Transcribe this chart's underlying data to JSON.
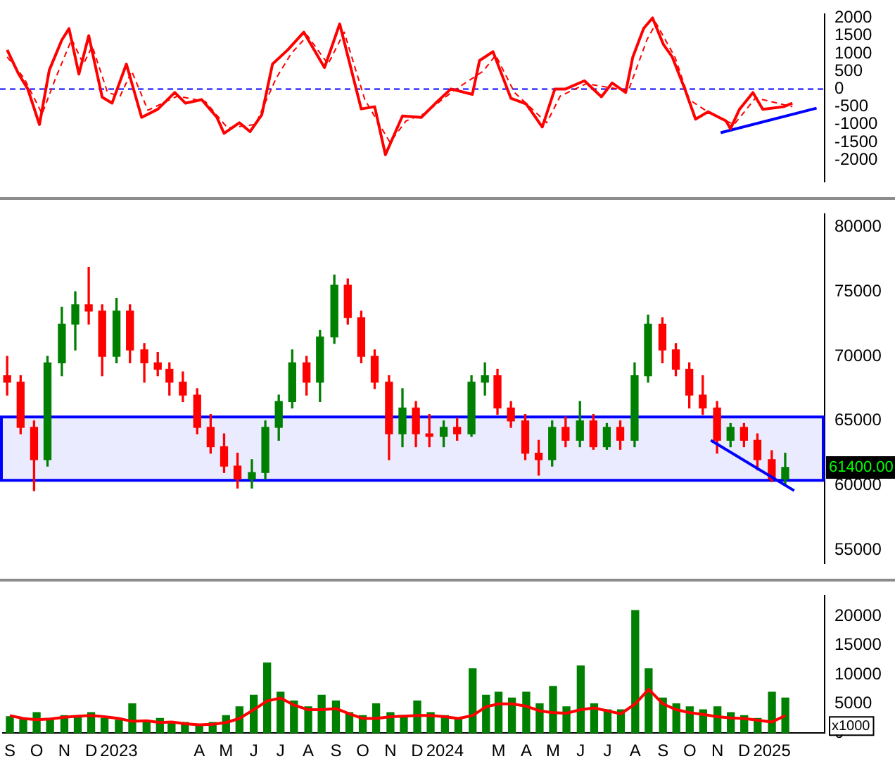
{
  "chart_data": [
    {
      "type": "line",
      "xlim": [
        "2022-08-24",
        "2025-03-01"
      ],
      "ylim": [
        -2600,
        2100
      ],
      "yticks": [
        -2000,
        -1500,
        -1000,
        -500,
        0,
        500,
        1000,
        1500,
        2000
      ],
      "tick_labels": "y",
      "grid": false,
      "legend": false,
      "ref_lines": [
        {
          "axis": "y",
          "value": 0,
          "color": "#0000ff",
          "line_style": "dashed"
        }
      ],
      "series": [
        {
          "color": "#ff0000",
          "x": [
            "2022-09-01",
            "2022-09-13",
            "2022-09-24",
            "2022-10-07",
            "2022-10-18",
            "2022-11-01",
            "2022-11-09",
            "2022-11-20",
            "2022-12-01",
            "2022-12-16",
            "2022-12-27",
            "2023-01-12",
            "2023-01-29",
            "2023-02-16",
            "2023-03-07",
            "2023-03-19",
            "2023-04-06",
            "2023-04-23",
            "2023-05-01",
            "2023-05-18",
            "2023-05-30",
            "2023-06-12",
            "2023-06-24",
            "2023-07-11",
            "2023-07-29",
            "2023-08-21",
            "2023-09-07",
            "2023-10-01",
            "2023-10-16",
            "2023-10-28",
            "2023-11-16",
            "2023-12-07",
            "2023-12-23",
            "2024-01-09",
            "2024-02-02",
            "2024-02-10",
            "2024-02-25",
            "2024-03-16",
            "2024-04-02",
            "2024-04-20",
            "2024-05-04",
            "2024-05-16",
            "2024-06-06",
            "2024-06-25",
            "2024-07-07",
            "2024-07-22",
            "2024-07-30",
            "2024-08-11",
            "2024-08-21",
            "2024-09-02",
            "2024-09-12",
            "2024-09-26",
            "2024-10-08",
            "2024-10-22",
            "2024-11-11",
            "2024-11-16",
            "2024-11-26",
            "2024-12-11",
            "2024-12-22",
            "2025-01-14",
            "2025-01-24"
          ],
          "values": [
            1100,
            460,
            0,
            -1000,
            530,
            1380,
            1700,
            420,
            1500,
            -230,
            -400,
            700,
            -800,
            -570,
            -100,
            -400,
            -300,
            -800,
            -1250,
            -950,
            -1200,
            -730,
            700,
            1100,
            1600,
            600,
            1830,
            -560,
            -500,
            -1850,
            -760,
            -800,
            -400,
            0,
            -150,
            800,
            1050,
            -260,
            -420,
            -1070,
            0,
            0,
            230,
            -220,
            170,
            -100,
            900,
            1700,
            2000,
            1260,
            900,
            0,
            -850,
            -640,
            -900,
            -1120,
            -570,
            -100,
            -570,
            -500,
            -400
          ]
        },
        {
          "color": "#ff0000",
          "line_style": "dashed",
          "x": [
            "2022-09-01",
            "2022-09-20",
            "2022-10-10",
            "2022-10-25",
            "2022-11-12",
            "2022-11-25",
            "2022-12-05",
            "2022-12-22",
            "2023-01-05",
            "2023-01-18",
            "2023-02-05",
            "2023-03-10",
            "2023-04-10",
            "2023-05-05",
            "2023-06-05",
            "2023-06-28",
            "2023-07-15",
            "2023-08-02",
            "2023-08-25",
            "2023-09-12",
            "2023-10-05",
            "2023-11-02",
            "2023-11-20",
            "2023-12-10",
            "2024-01-12",
            "2024-02-14",
            "2024-02-28",
            "2024-03-20",
            "2024-04-25",
            "2024-05-10",
            "2024-06-08",
            "2024-07-25",
            "2024-08-15",
            "2024-08-25",
            "2024-09-15",
            "2024-10-01",
            "2024-10-25",
            "2024-11-20",
            "2024-12-14",
            "2025-01-24"
          ],
          "values": [
            900,
            300,
            -700,
            300,
            1400,
            700,
            1200,
            -100,
            -200,
            500,
            -600,
            -200,
            -350,
            -1100,
            -1000,
            300,
            1000,
            1500,
            700,
            1600,
            -300,
            -1500,
            -900,
            -700,
            -50,
            500,
            950,
            -100,
            -950,
            -200,
            150,
            -50,
            1400,
            1850,
            900,
            -300,
            -700,
            -1000,
            -250,
            -500
          ]
        },
        {
          "color": "#0000ff",
          "x": [
            "2024-11-05",
            "2025-02-20"
          ],
          "values": [
            -1230,
            -540
          ]
        }
      ]
    },
    {
      "type": "candlestick",
      "xlim": [
        "2022-08-24",
        "2025-03-01"
      ],
      "ylim": [
        54000,
        81000
      ],
      "yticks": [
        55000,
        60000,
        65000,
        70000,
        75000,
        80000
      ],
      "tick_labels": "y",
      "grid": false,
      "legend": false,
      "x": [
        "2022-09-01",
        "2022-09-16",
        "2022-10-01",
        "2022-10-16",
        "2022-11-01",
        "2022-11-16",
        "2022-12-01",
        "2022-12-16",
        "2023-01-01",
        "2023-01-16",
        "2023-02-01",
        "2023-02-16",
        "2023-03-01",
        "2023-03-16",
        "2023-04-01",
        "2023-04-16",
        "2023-05-01",
        "2023-05-16",
        "2023-06-01",
        "2023-06-16",
        "2023-07-01",
        "2023-07-16",
        "2023-08-01",
        "2023-08-16",
        "2023-09-01",
        "2023-09-16",
        "2023-10-01",
        "2023-10-16",
        "2023-11-01",
        "2023-11-16",
        "2023-12-01",
        "2023-12-16",
        "2024-01-01",
        "2024-01-16",
        "2024-02-01",
        "2024-02-16",
        "2024-03-01",
        "2024-03-16",
        "2024-04-01",
        "2024-04-16",
        "2024-05-01",
        "2024-05-16",
        "2024-06-01",
        "2024-06-16",
        "2024-07-01",
        "2024-07-16",
        "2024-08-01",
        "2024-08-16",
        "2024-09-01",
        "2024-09-16",
        "2024-10-01",
        "2024-10-16",
        "2024-11-01",
        "2024-11-16",
        "2024-12-01",
        "2024-12-16",
        "2025-01-01",
        "2025-01-16"
      ],
      "ohlc": [
        [
          68500,
          70000,
          67000,
          68000
        ],
        [
          68000,
          68500,
          64000,
          64500
        ],
        [
          64500,
          65000,
          59600,
          62000
        ],
        [
          62000,
          70000,
          61500,
          69500
        ],
        [
          69500,
          73800,
          68500,
          72500
        ],
        [
          72500,
          75000,
          70500,
          74000
        ],
        [
          74000,
          76900,
          72500,
          73500
        ],
        [
          73500,
          74000,
          68500,
          70000
        ],
        [
          70000,
          74500,
          69500,
          73500
        ],
        [
          73500,
          74000,
          69500,
          70500
        ],
        [
          70500,
          71000,
          68000,
          69500
        ],
        [
          69500,
          70300,
          68500,
          69000
        ],
        [
          69000,
          69500,
          67000,
          68000
        ],
        [
          68000,
          68800,
          66500,
          67000
        ],
        [
          67000,
          67500,
          64000,
          64500
        ],
        [
          64500,
          65500,
          62500,
          63000
        ],
        [
          63000,
          64000,
          61000,
          61500
        ],
        [
          61500,
          62500,
          59800,
          60500
        ],
        [
          60500,
          62000,
          59800,
          61000
        ],
        [
          61000,
          65000,
          60500,
          64500
        ],
        [
          64500,
          67000,
          63500,
          66500
        ],
        [
          66500,
          70500,
          66000,
          69500
        ],
        [
          69500,
          70000,
          67000,
          68000
        ],
        [
          68000,
          72000,
          66500,
          71500
        ],
        [
          71500,
          76300,
          71000,
          75500
        ],
        [
          75500,
          76000,
          72500,
          73000
        ],
        [
          73000,
          73500,
          69500,
          70000
        ],
        [
          70000,
          70500,
          67500,
          68000
        ],
        [
          68000,
          68500,
          62000,
          64000
        ],
        [
          64000,
          67500,
          63000,
          66000
        ],
        [
          66000,
          66500,
          63000,
          64000
        ],
        [
          64000,
          65500,
          63000,
          63800
        ],
        [
          63800,
          65000,
          63000,
          64500
        ],
        [
          64500,
          65200,
          63500,
          64000
        ],
        [
          64000,
          68500,
          63800,
          68000
        ],
        [
          68000,
          69500,
          67000,
          68500
        ],
        [
          68500,
          69000,
          65500,
          66000
        ],
        [
          66000,
          66500,
          64500,
          65000
        ],
        [
          65000,
          65500,
          62000,
          62500
        ],
        [
          62500,
          63500,
          60800,
          62000
        ],
        [
          62000,
          65000,
          61500,
          64500
        ],
        [
          64500,
          65300,
          63000,
          63500
        ],
        [
          63500,
          66500,
          63000,
          65000
        ],
        [
          65000,
          65500,
          62800,
          63000
        ],
        [
          63000,
          64800,
          62800,
          64500
        ],
        [
          64500,
          65000,
          62800,
          63500
        ],
        [
          63500,
          69500,
          63000,
          68500
        ],
        [
          68500,
          73200,
          68000,
          72500
        ],
        [
          72500,
          73000,
          69500,
          70500
        ],
        [
          70500,
          71000,
          68500,
          69000
        ],
        [
          69000,
          69500,
          66000,
          67000
        ],
        [
          67000,
          68500,
          65500,
          66000
        ],
        [
          66000,
          66500,
          62500,
          63500
        ],
        [
          63500,
          64800,
          63000,
          64500
        ],
        [
          64500,
          64800,
          63000,
          63500
        ],
        [
          63500,
          64000,
          61200,
          62000
        ],
        [
          62000,
          62700,
          60300,
          60500
        ],
        [
          60500,
          62500,
          60000,
          61400
        ]
      ],
      "colors": [
        "#ff0000",
        "#ff0000",
        "#ff0000",
        "#008000",
        "#008000",
        "#008000",
        "#ff0000",
        "#ff0000",
        "#008000",
        "#ff0000",
        "#ff0000",
        "#ff0000",
        "#ff0000",
        "#ff0000",
        "#ff0000",
        "#ff0000",
        "#ff0000",
        "#ff0000",
        "#008000",
        "#008000",
        "#008000",
        "#008000",
        "#ff0000",
        "#008000",
        "#008000",
        "#ff0000",
        "#ff0000",
        "#ff0000",
        "#ff0000",
        "#008000",
        "#ff0000",
        "#ff0000",
        "#008000",
        "#ff0000",
        "#008000",
        "#008000",
        "#ff0000",
        "#ff0000",
        "#ff0000",
        "#ff0000",
        "#008000",
        "#ff0000",
        "#008000",
        "#ff0000",
        "#008000",
        "#ff0000",
        "#008000",
        "#008000",
        "#ff0000",
        "#ff0000",
        "#ff0000",
        "#ff0000",
        "#ff0000",
        "#008000",
        "#ff0000",
        "#ff0000",
        "#ff0000",
        "#008000"
      ],
      "bands": [
        {
          "axis": "y",
          "from": 60400,
          "to": 65300,
          "color": "#0000ff"
        }
      ],
      "series": [
        {
          "type": "line",
          "color": "#0000ff",
          "x": [
            "2024-10-25",
            "2025-01-26"
          ],
          "values": [
            63500,
            59600
          ]
        }
      ],
      "annotations": [
        "61400.00"
      ]
    },
    {
      "type": "bar",
      "xlim": [
        "2022-08-24",
        "2025-03-01"
      ],
      "ylim": [
        0,
        23500
      ],
      "yticks": [
        0,
        5000,
        10000,
        15000,
        20000
      ],
      "grid": false,
      "legend": false,
      "xticks": [
        {
          "value": "2022-09-01",
          "label": "S"
        },
        {
          "value": "2022-10-01",
          "label": "O"
        },
        {
          "value": "2022-11-01",
          "label": "N"
        },
        {
          "value": "2022-12-01",
          "label": "D"
        },
        {
          "value": "2023-01-01",
          "label": "2023"
        },
        {
          "value": "2023-04-01",
          "label": "A"
        },
        {
          "value": "2023-05-01",
          "label": "M"
        },
        {
          "value": "2023-06-01",
          "label": "J"
        },
        {
          "value": "2023-07-01",
          "label": "J"
        },
        {
          "value": "2023-08-01",
          "label": "A"
        },
        {
          "value": "2023-09-01",
          "label": "S"
        },
        {
          "value": "2023-10-01",
          "label": "O"
        },
        {
          "value": "2023-11-01",
          "label": "N"
        },
        {
          "value": "2023-12-01",
          "label": "D"
        },
        {
          "value": "2024-01-01",
          "label": "2024"
        },
        {
          "value": "2024-03-01",
          "label": "M"
        },
        {
          "value": "2024-04-01",
          "label": "A"
        },
        {
          "value": "2024-05-01",
          "label": "M"
        },
        {
          "value": "2024-06-01",
          "label": "J"
        },
        {
          "value": "2024-07-01",
          "label": "J"
        },
        {
          "value": "2024-08-01",
          "label": "A"
        },
        {
          "value": "2024-09-01",
          "label": "S"
        },
        {
          "value": "2024-10-01",
          "label": "O"
        },
        {
          "value": "2024-11-01",
          "label": "N"
        },
        {
          "value": "2024-12-01",
          "label": "D"
        },
        {
          "value": "2025-01-01",
          "label": "2025"
        }
      ],
      "x": [
        "2022-09-01",
        "2022-09-16",
        "2022-10-01",
        "2022-10-16",
        "2022-11-01",
        "2022-11-16",
        "2022-12-01",
        "2022-12-16",
        "2023-01-01",
        "2023-01-16",
        "2023-02-01",
        "2023-02-16",
        "2023-03-01",
        "2023-03-16",
        "2023-04-01",
        "2023-04-16",
        "2023-05-01",
        "2023-05-16",
        "2023-06-01",
        "2023-06-16",
        "2023-07-01",
        "2023-07-16",
        "2023-08-01",
        "2023-08-16",
        "2023-09-01",
        "2023-09-16",
        "2023-10-01",
        "2023-10-16",
        "2023-11-01",
        "2023-11-16",
        "2023-12-01",
        "2023-12-16",
        "2024-01-01",
        "2024-01-16",
        "2024-02-01",
        "2024-02-16",
        "2024-03-01",
        "2024-03-16",
        "2024-04-01",
        "2024-04-16",
        "2024-05-01",
        "2024-05-16",
        "2024-06-01",
        "2024-06-16",
        "2024-07-01",
        "2024-07-16",
        "2024-08-01",
        "2024-08-16",
        "2024-09-01",
        "2024-09-16",
        "2024-10-01",
        "2024-10-16",
        "2024-11-01",
        "2024-11-16",
        "2024-12-01",
        "2024-12-16",
        "2025-01-01",
        "2025-01-16"
      ],
      "series": [
        {
          "type": "bar",
          "color": "#008000",
          "values": [
            2800,
            2500,
            3500,
            2500,
            3000,
            2800,
            3500,
            2500,
            2200,
            5000,
            2000,
            2500,
            2000,
            1800,
            1500,
            1800,
            3000,
            4500,
            6500,
            12000,
            7000,
            5500,
            4500,
            6500,
            5500,
            3500,
            3000,
            5000,
            3500,
            3000,
            5500,
            3500,
            3000,
            2500,
            11000,
            6500,
            7000,
            6000,
            7000,
            5000,
            8000,
            4500,
            11500,
            5000,
            4000,
            4000,
            21000,
            11000,
            6000,
            5000,
            4500,
            4000,
            4500,
            3500,
            3000,
            2500,
            7000,
            6000
          ]
        },
        {
          "type": "line",
          "color": "#ff0000",
          "values": [
            3000,
            2500,
            2300,
            2400,
            2700,
            2900,
            3000,
            2800,
            2500,
            2000,
            2100,
            1800,
            1900,
            1600,
            1400,
            1500,
            1800,
            2500,
            4000,
            5500,
            6000,
            4800,
            4000,
            4000,
            4200,
            3300,
            2500,
            2500,
            2800,
            2900,
            3000,
            3000,
            2800,
            2500,
            3000,
            4500,
            5000,
            5000,
            4600,
            3800,
            3500,
            3400,
            4000,
            4300,
            3800,
            3300,
            5000,
            7500,
            5000,
            4000,
            3500,
            3200,
            2800,
            2600,
            2500,
            2200,
            1900,
            3000
          ]
        }
      ],
      "annotations": [
        "x1000"
      ]
    }
  ]
}
